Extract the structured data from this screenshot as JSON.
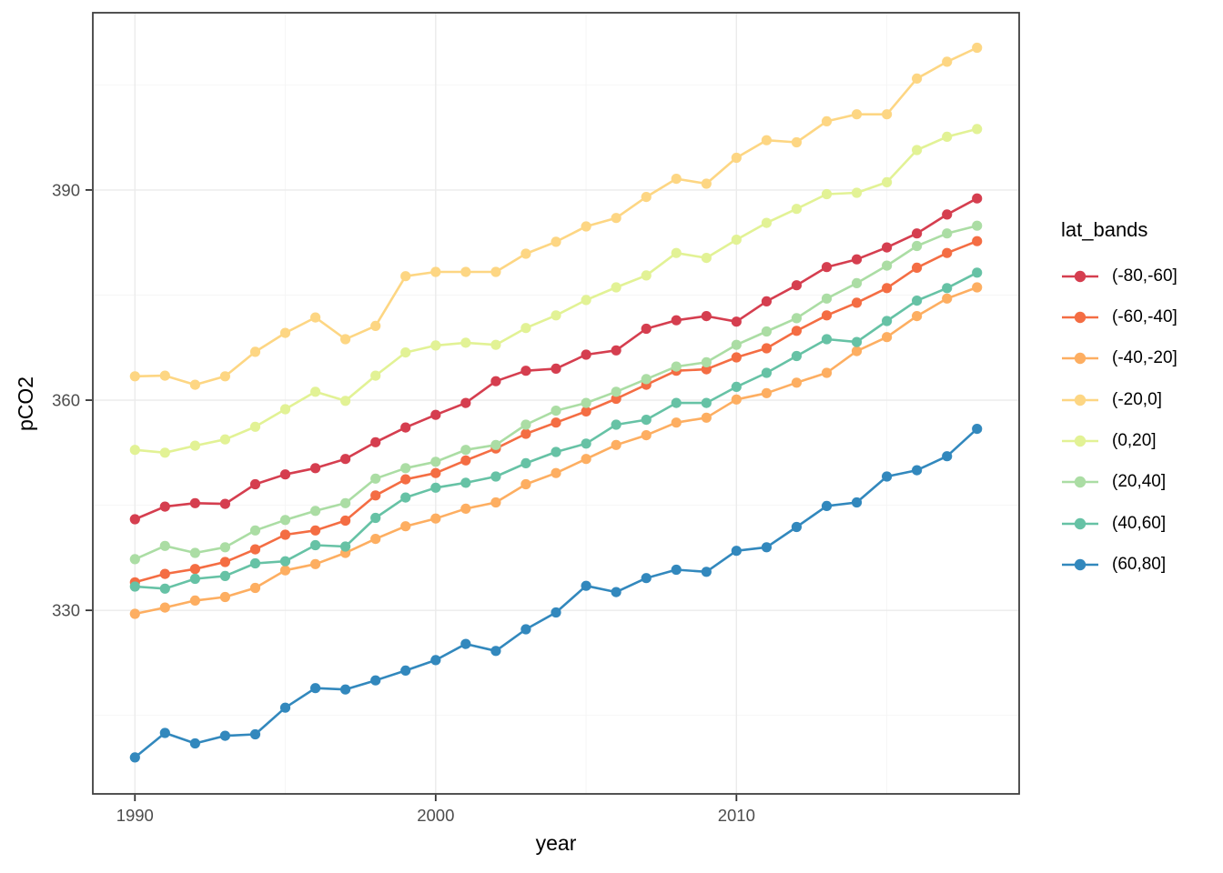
{
  "chart_data": {
    "type": "line",
    "title": "",
    "xlabel": "year",
    "ylabel": "pCO2",
    "legend_title": "lat_bands",
    "legend_position": "right",
    "grid": true,
    "x": [
      1990,
      1991,
      1992,
      1993,
      1994,
      1995,
      1996,
      1997,
      1998,
      1999,
      2000,
      2001,
      2002,
      2003,
      2004,
      2005,
      2006,
      2007,
      2008,
      2009,
      2010,
      2011,
      2012,
      2013,
      2014,
      2015,
      2016,
      2017,
      2018
    ],
    "x_ticks": [
      1990,
      2000,
      2010
    ],
    "x_tick_labels": [
      "1990",
      "2000",
      "2010"
    ],
    "x_minor_ticks": [
      1995,
      2005,
      2015
    ],
    "y_ticks": [
      330,
      360,
      390
    ],
    "y_tick_labels": [
      "330",
      "360",
      "390"
    ],
    "y_minor_ticks": [
      315,
      345,
      375,
      405
    ],
    "xlim": [
      1988.6,
      2019.4
    ],
    "ylim": [
      303.8,
      415.3
    ],
    "series": [
      {
        "name": "(-80,-60]",
        "color": "#d53e4f",
        "values": [
          343.0,
          344.8,
          345.3,
          345.2,
          348.0,
          349.4,
          350.3,
          351.6,
          354.0,
          356.1,
          357.9,
          359.6,
          362.7,
          364.2,
          364.5,
          366.5,
          367.1,
          370.2,
          371.4,
          372.0,
          371.2,
          374.1,
          376.4,
          379.0,
          380.1,
          381.8,
          383.8,
          386.5,
          388.8
        ]
      },
      {
        "name": "(-60,-40]",
        "color": "#f46d43",
        "values": [
          334.0,
          335.2,
          335.9,
          336.9,
          338.7,
          340.8,
          341.4,
          342.8,
          346.4,
          348.7,
          349.6,
          351.4,
          353.1,
          355.2,
          356.8,
          358.4,
          360.2,
          362.2,
          364.2,
          364.4,
          366.1,
          367.4,
          369.9,
          372.1,
          373.9,
          376.0,
          378.9,
          381.0,
          382.7
        ]
      },
      {
        "name": "(-40,-20]",
        "color": "#fdae61",
        "values": [
          329.5,
          330.4,
          331.4,
          331.9,
          333.2,
          335.7,
          336.6,
          338.2,
          340.2,
          342.0,
          343.1,
          344.5,
          345.4,
          348.0,
          349.6,
          351.6,
          353.6,
          355.0,
          356.8,
          357.5,
          360.1,
          361.0,
          362.5,
          363.9,
          367.0,
          369.0,
          372.0,
          374.5,
          376.1
        ]
      },
      {
        "name": "(-20,0]",
        "color": "#fdd683",
        "values": [
          363.4,
          363.5,
          362.2,
          363.4,
          366.9,
          369.6,
          371.8,
          368.7,
          370.6,
          377.7,
          378.3,
          378.3,
          378.3,
          380.9,
          382.6,
          384.8,
          386.0,
          389.0,
          391.6,
          390.9,
          394.6,
          397.1,
          396.8,
          399.8,
          400.8,
          400.8,
          405.9,
          408.3,
          410.3
        ]
      },
      {
        "name": "(0,20]",
        "color": "#e2f295",
        "values": [
          352.9,
          352.5,
          353.5,
          354.4,
          356.2,
          358.7,
          361.2,
          359.9,
          363.5,
          366.8,
          367.8,
          368.2,
          367.9,
          370.3,
          372.1,
          374.3,
          376.1,
          377.8,
          381.0,
          380.3,
          382.9,
          385.3,
          387.3,
          389.4,
          389.6,
          391.1,
          395.7,
          397.6,
          398.7
        ]
      },
      {
        "name": "(20,40]",
        "color": "#abdda4",
        "values": [
          337.3,
          339.2,
          338.2,
          339.0,
          341.4,
          342.9,
          344.2,
          345.3,
          348.8,
          350.3,
          351.2,
          352.9,
          353.6,
          356.5,
          358.5,
          359.6,
          361.2,
          363.0,
          364.8,
          365.4,
          367.9,
          369.8,
          371.7,
          374.5,
          376.7,
          379.2,
          382.0,
          383.8,
          384.9
        ]
      },
      {
        "name": "(40,60]",
        "color": "#66c2a5",
        "values": [
          333.4,
          333.1,
          334.5,
          334.9,
          336.7,
          337.0,
          339.3,
          339.1,
          343.2,
          346.1,
          347.5,
          348.2,
          349.1,
          351.0,
          352.6,
          353.8,
          356.5,
          357.2,
          359.6,
          359.6,
          361.9,
          363.9,
          366.3,
          368.7,
          368.3,
          371.3,
          374.2,
          376.0,
          378.2
        ]
      },
      {
        "name": "(60,80]",
        "color": "#3288bd",
        "values": [
          309.0,
          312.5,
          311.0,
          312.1,
          312.3,
          316.1,
          318.9,
          318.7,
          320.0,
          321.4,
          322.9,
          325.2,
          324.2,
          327.3,
          329.7,
          333.5,
          332.6,
          334.6,
          335.8,
          335.5,
          338.5,
          339.0,
          341.9,
          344.9,
          345.4,
          349.1,
          350.0,
          352.0,
          355.9
        ]
      }
    ],
    "style": {
      "grid_major_color": "#ebebeb",
      "grid_minor_color": "#f5f5f5",
      "panel_border_color": "#3f3f3f",
      "tick_color": "#333333",
      "tick_label_color": "#4d4d4d",
      "background": "#ffffff"
    }
  }
}
